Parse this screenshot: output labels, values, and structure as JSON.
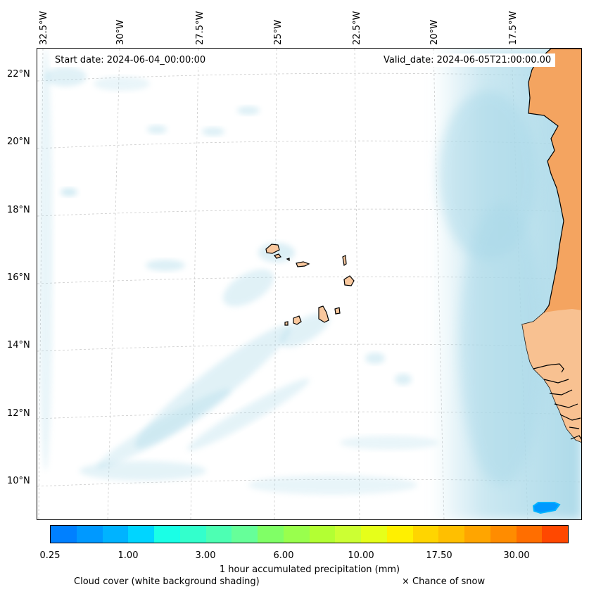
{
  "header": {
    "start_date": "Start date: 2024-06-04_00:00:00",
    "valid_date": "Valid_date: 2024-06-05T21:00:00.00"
  },
  "axes": {
    "longitude_labels": [
      "32.5°W",
      "30°W",
      "27.5°W",
      "25°W",
      "22.5°W",
      "20°W",
      "17.5°W"
    ],
    "latitude_labels": [
      "22°N",
      "20°N",
      "18°N",
      "16°N",
      "14°N",
      "12°N",
      "10°N"
    ]
  },
  "colorbar": {
    "title": "1 hour accumulated precipitation (mm)",
    "tick_labels": [
      "0.25",
      "1.00",
      "3.00",
      "6.00",
      "10.00",
      "17.50",
      "30.00"
    ],
    "colors": [
      "#0080ff",
      "#0099ff",
      "#00b3ff",
      "#00d5ff",
      "#1affe6",
      "#33ffcc",
      "#4dffb3",
      "#66ff99",
      "#80ff66",
      "#99ff4d",
      "#b3ff33",
      "#ccff33",
      "#e6ff1a",
      "#fff000",
      "#ffd500",
      "#ffbf00",
      "#ffa500",
      "#ff8c00",
      "#ff6e00",
      "#ff4800"
    ]
  },
  "legend": {
    "cloud_cover": "Cloud cover (white background shading)",
    "snow": "× Chance of snow"
  },
  "colors": {
    "land": "#f4a460",
    "cloud": "#a8d8e8",
    "precip": "#0099ff",
    "coastline": "#000000",
    "grid": "#cccccc"
  }
}
